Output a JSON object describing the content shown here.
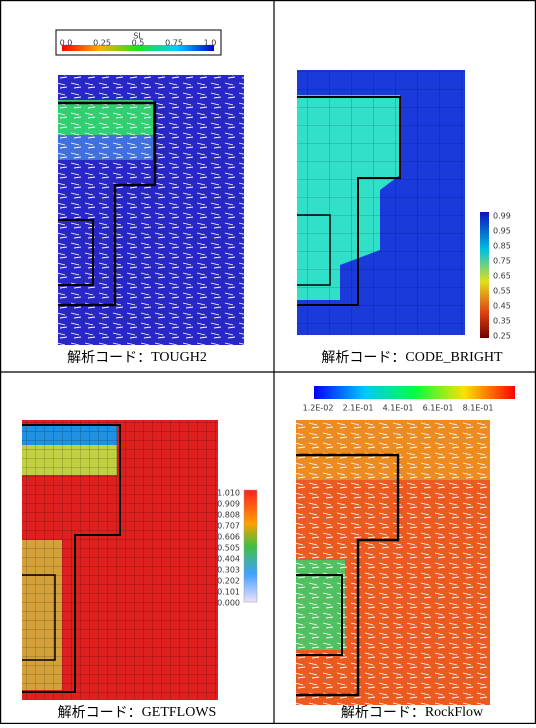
{
  "panels": [
    {
      "caption_label": "解析コード：",
      "code": "TOUGH2",
      "legend_title": "SL",
      "legend": [
        "0.0",
        "0.25",
        "0.5",
        "0.75",
        "1.0"
      ]
    },
    {
      "caption_label": "解析コード：",
      "code": "CODE_BRIGHT",
      "legend": [
        "0.99",
        "0.95",
        "0.85",
        "0.75",
        "0.65",
        "0.55",
        "0.45",
        "0.35",
        "0.25"
      ]
    },
    {
      "caption_label": "解析コード：",
      "code": "GETFLOWS",
      "legend": [
        "1.010",
        "0.909",
        "0.808",
        "0.707",
        "0.606",
        "0.505",
        "0.404",
        "0.303",
        "0.202",
        "0.101",
        "0.000"
      ]
    },
    {
      "caption_label": "解析コード：",
      "code": "RockFlow",
      "legend": [
        "1.2E-02",
        "2.1E-01",
        "4.1E-01",
        "6.1E-01",
        "8.1E-01"
      ]
    }
  ]
}
